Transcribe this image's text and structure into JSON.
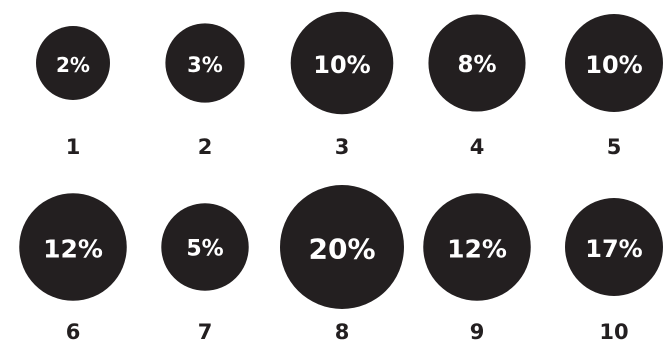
{
  "chart_data": {
    "type": "bubble",
    "categories": [
      "1",
      "2",
      "3",
      "4",
      "5",
      "6",
      "7",
      "8",
      "9",
      "10"
    ],
    "values": [
      2,
      3,
      10,
      8,
      10,
      12,
      5,
      20,
      12,
      17
    ],
    "value_labels": [
      "2%",
      "3%",
      "10%",
      "8%",
      "10%",
      "12%",
      "5%",
      "20%",
      "12%",
      "17%"
    ],
    "unit": "%",
    "layout": "two rows of five",
    "title": "",
    "xlabel": "",
    "ylabel": "",
    "grid": false,
    "legend": "none",
    "colors": {
      "bubble": "#231f20",
      "value_text": "#ffffff",
      "category_text": "#231f20",
      "background": "#ffffff"
    }
  }
}
